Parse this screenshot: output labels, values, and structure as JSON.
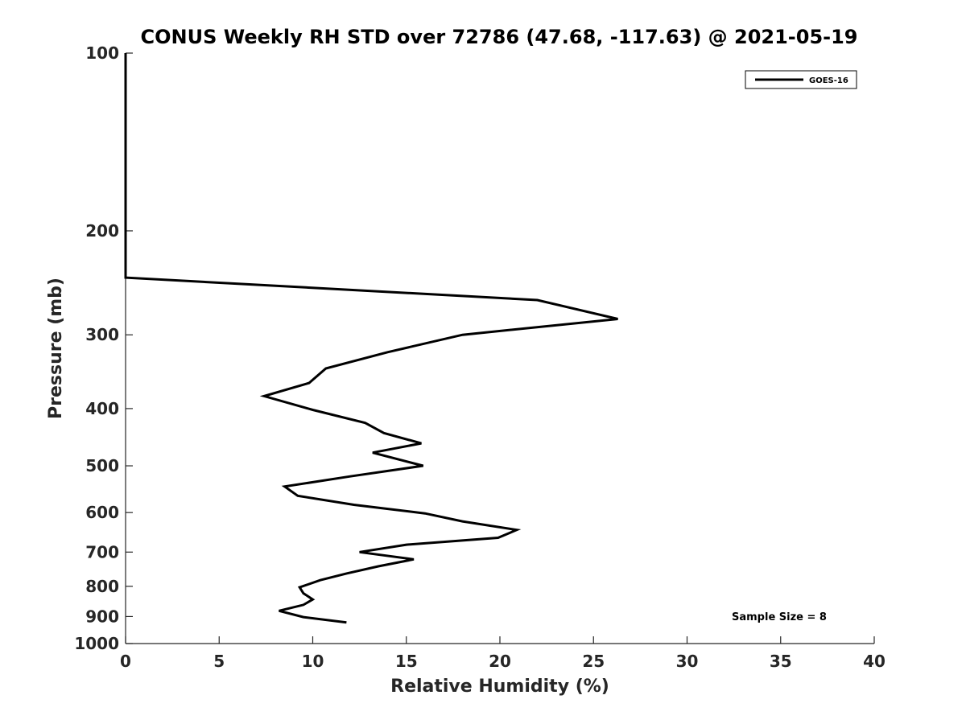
{
  "chart_data": {
    "type": "line",
    "title": "CONUS Weekly RH STD over 72786 (47.68, -117.63) @ 2021-05-19",
    "xlabel": "Relative Humidity (%)",
    "ylabel": "Pressure (mb)",
    "xlim": [
      0,
      40
    ],
    "ylim": [
      1000,
      100
    ],
    "y_scale": "log",
    "y_reversed": true,
    "grid": false,
    "legend_position": "top-right",
    "x_ticks": [
      0,
      5,
      10,
      15,
      20,
      25,
      30,
      35,
      40
    ],
    "x_tick_labels": [
      "0",
      "5",
      "10",
      "15",
      "20",
      "25",
      "30",
      "35",
      "40"
    ],
    "y_ticks": [
      100,
      200,
      300,
      400,
      500,
      600,
      700,
      800,
      900,
      1000
    ],
    "y_tick_labels": [
      "100",
      "200",
      "300",
      "400",
      "500",
      "600",
      "700",
      "800",
      "900",
      "1000"
    ],
    "series": [
      {
        "name": "GOES-16",
        "color": "#000000",
        "points": [
          {
            "x": 0,
            "y": 100
          },
          {
            "x": 0,
            "y": 200
          },
          {
            "x": 0,
            "y": 240
          },
          {
            "x": 22,
            "y": 262
          },
          {
            "x": 26.3,
            "y": 282
          },
          {
            "x": 18,
            "y": 300
          },
          {
            "x": 14,
            "y": 321
          },
          {
            "x": 10.7,
            "y": 342
          },
          {
            "x": 9.8,
            "y": 362
          },
          {
            "x": 7.4,
            "y": 381
          },
          {
            "x": 10,
            "y": 402
          },
          {
            "x": 12.8,
            "y": 423
          },
          {
            "x": 13.8,
            "y": 440
          },
          {
            "x": 15.8,
            "y": 458
          },
          {
            "x": 13.2,
            "y": 475
          },
          {
            "x": 15.9,
            "y": 500
          },
          {
            "x": 12,
            "y": 521
          },
          {
            "x": 8.5,
            "y": 542
          },
          {
            "x": 9.2,
            "y": 562
          },
          {
            "x": 12.2,
            "y": 582
          },
          {
            "x": 16,
            "y": 602
          },
          {
            "x": 18,
            "y": 621
          },
          {
            "x": 20.9,
            "y": 642
          },
          {
            "x": 19.9,
            "y": 662
          },
          {
            "x": 15,
            "y": 680
          },
          {
            "x": 12.5,
            "y": 700
          },
          {
            "x": 15.4,
            "y": 720
          },
          {
            "x": 13.5,
            "y": 740
          },
          {
            "x": 11.8,
            "y": 761
          },
          {
            "x": 10.4,
            "y": 781
          },
          {
            "x": 9.3,
            "y": 803
          },
          {
            "x": 9.5,
            "y": 822
          },
          {
            "x": 10,
            "y": 842
          },
          {
            "x": 9.5,
            "y": 860
          },
          {
            "x": 8.2,
            "y": 880
          },
          {
            "x": 9.5,
            "y": 902
          },
          {
            "x": 11.8,
            "y": 921
          }
        ]
      }
    ],
    "legend": {
      "entries": [
        "GOES-16"
      ]
    },
    "annotations": [
      {
        "text": "Sample Size = 8",
        "position": "bottom-right"
      }
    ]
  }
}
